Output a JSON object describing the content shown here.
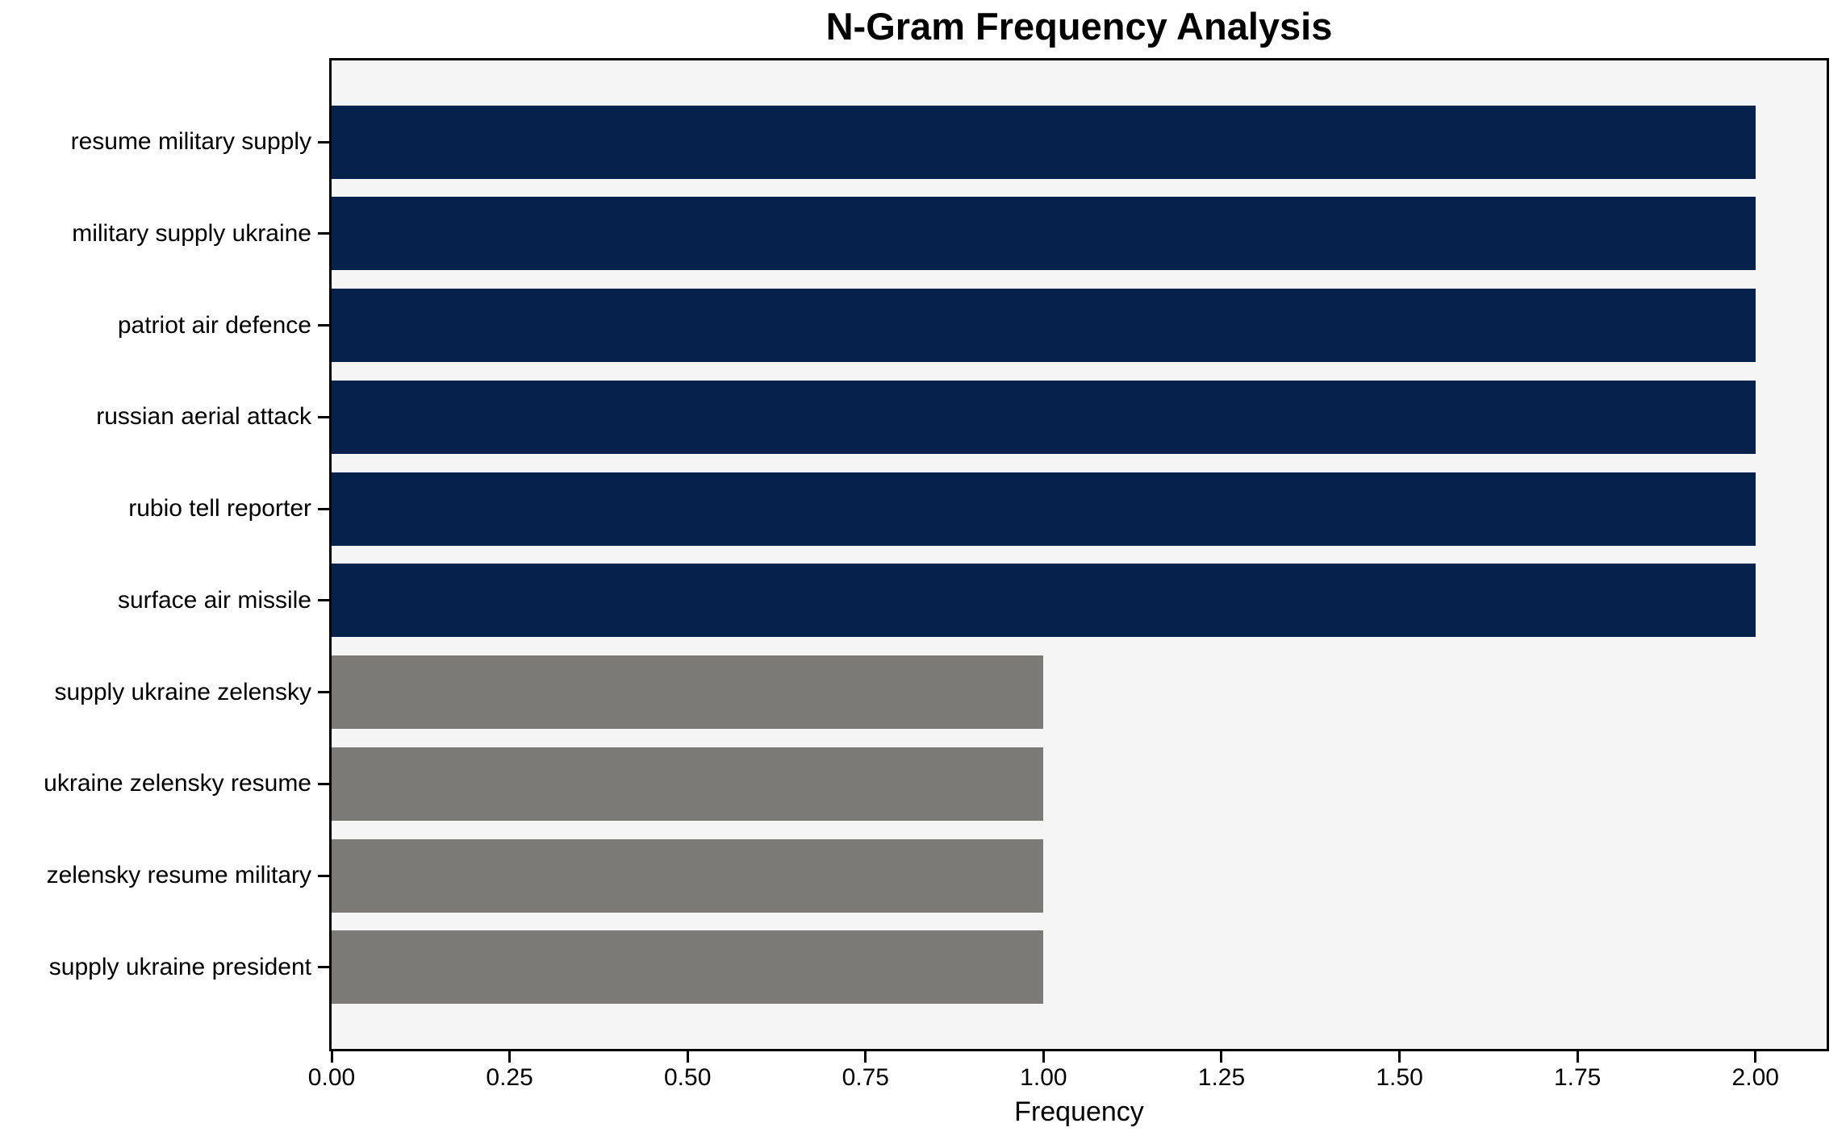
{
  "chart_data": {
    "type": "bar",
    "orientation": "horizontal",
    "title": "N-Gram Frequency Analysis",
    "xlabel": "Frequency",
    "ylabel": "",
    "categories": [
      "resume military supply",
      "military supply ukraine",
      "patriot air defence",
      "russian aerial attack",
      "rubio tell reporter",
      "surface air missile",
      "supply ukraine zelensky",
      "ukraine zelensky resume",
      "zelensky resume military",
      "supply ukraine president"
    ],
    "values": [
      2,
      2,
      2,
      2,
      2,
      2,
      1,
      1,
      1,
      1
    ],
    "bar_colors": [
      "#04224c",
      "#04224c",
      "#04224c",
      "#04224c",
      "#04224c",
      "#04224c",
      "#7b7a77",
      "#7b7a77",
      "#7b7a77",
      "#7b7a77"
    ],
    "x_tick_values": [
      0,
      0.25,
      0.5,
      0.75,
      1,
      1.25,
      1.5,
      1.75,
      2
    ],
    "x_tick_labels": [
      "0.00",
      "0.25",
      "0.50",
      "0.75",
      "1.00",
      "1.25",
      "1.50",
      "1.75",
      "2.00"
    ],
    "xlim": [
      0,
      2.1
    ],
    "grid": false,
    "legend": "none",
    "colors": {
      "high_frequency_bar": "#04224c",
      "low_frequency_bar": "#7b7a77",
      "plot_background": "#f5f5f6",
      "figure_background": "#ffffff",
      "axis": "#000000",
      "text": "#000000"
    }
  }
}
